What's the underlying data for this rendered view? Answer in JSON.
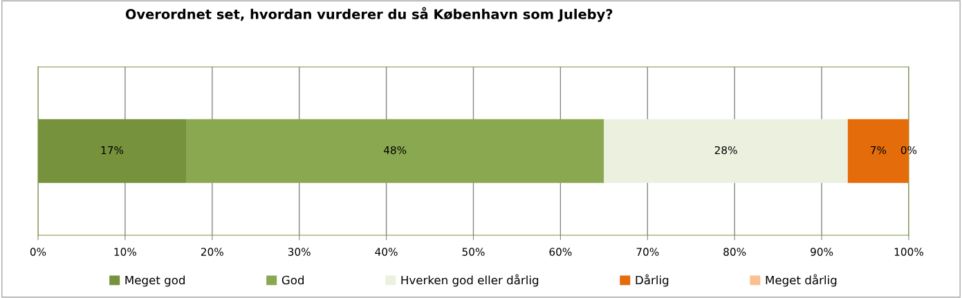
{
  "chart_data": {
    "type": "bar",
    "orientation": "horizontal",
    "stacked": true,
    "title": "Overordnet set, hvordan vurderer du så København som Juleby?",
    "categories": [
      null
    ],
    "series": [
      {
        "name": "Meget god",
        "color": "#76923c",
        "values": [
          17
        ],
        "value_labels": [
          "17%"
        ]
      },
      {
        "name": "God",
        "color": "#8aa84f",
        "values": [
          48
        ],
        "value_labels": [
          "48%"
        ]
      },
      {
        "name": "Hverken god eller dårlig",
        "color": "#ebf1de",
        "values": [
          28
        ],
        "value_labels": [
          "28%"
        ]
      },
      {
        "name": "Dårlig",
        "color": "#e46c0a",
        "values": [
          7
        ],
        "value_labels": [
          "7%"
        ]
      },
      {
        "name": "Meget dårlig",
        "color": "#fac090",
        "values": [
          0
        ],
        "value_labels": [
          "0%"
        ]
      }
    ],
    "xlim": [
      0,
      100
    ],
    "xticks": [
      {
        "value": 0,
        "label": "0%"
      },
      {
        "value": 10,
        "label": "10%"
      },
      {
        "value": 20,
        "label": "20%"
      },
      {
        "value": 30,
        "label": "30%"
      },
      {
        "value": 40,
        "label": "40%"
      },
      {
        "value": 50,
        "label": "50%"
      },
      {
        "value": 60,
        "label": "60%"
      },
      {
        "value": 70,
        "label": "70%"
      },
      {
        "value": 80,
        "label": "80%"
      },
      {
        "value": 90,
        "label": "90%"
      },
      {
        "value": 100,
        "label": "100%"
      }
    ],
    "grid": "x",
    "legend": "bottom",
    "tick_labels": "x"
  }
}
